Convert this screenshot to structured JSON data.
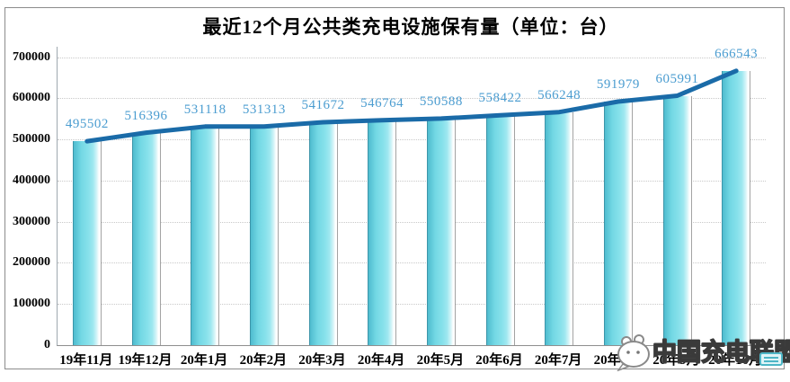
{
  "title": "最近12个月公共类充电设施保有量（单位：台）",
  "watermark": {
    "text": "中国充电联盟",
    "icon": "chat-bubble-mascot-icon",
    "stamp": "teal-seal-icon"
  },
  "chart_data": {
    "type": "bar",
    "line_overlay": true,
    "title": "最近12个月公共类充电设施保有量（单位：台）",
    "unit": "台",
    "categories": [
      "19年11月",
      "19年12月",
      "20年1月",
      "20年2月",
      "20年3月",
      "20年4月",
      "20年5月",
      "20年6月",
      "20年7月",
      "20年8月",
      "20年9月",
      "20年10月"
    ],
    "values": [
      495502,
      516396,
      531118,
      531313,
      541672,
      546764,
      550588,
      558422,
      566248,
      591979,
      605991,
      666543
    ],
    "xlabel": "",
    "ylabel": "",
    "ylim": [
      0,
      700000
    ],
    "yticks": [
      0,
      100000,
      200000,
      300000,
      400000,
      500000,
      600000,
      700000
    ],
    "grid": "horizontal-dotted",
    "legend": "none",
    "colors": {
      "bar_fill": "#6ED7E4",
      "bar_edge_left": "#3D95A9",
      "bar_edge_right": "#A3A3A3",
      "line": "#1A6BA8",
      "value_label": "#4A9CD0",
      "axis_text": "#000000",
      "gridline": "#C9C9C9"
    }
  }
}
